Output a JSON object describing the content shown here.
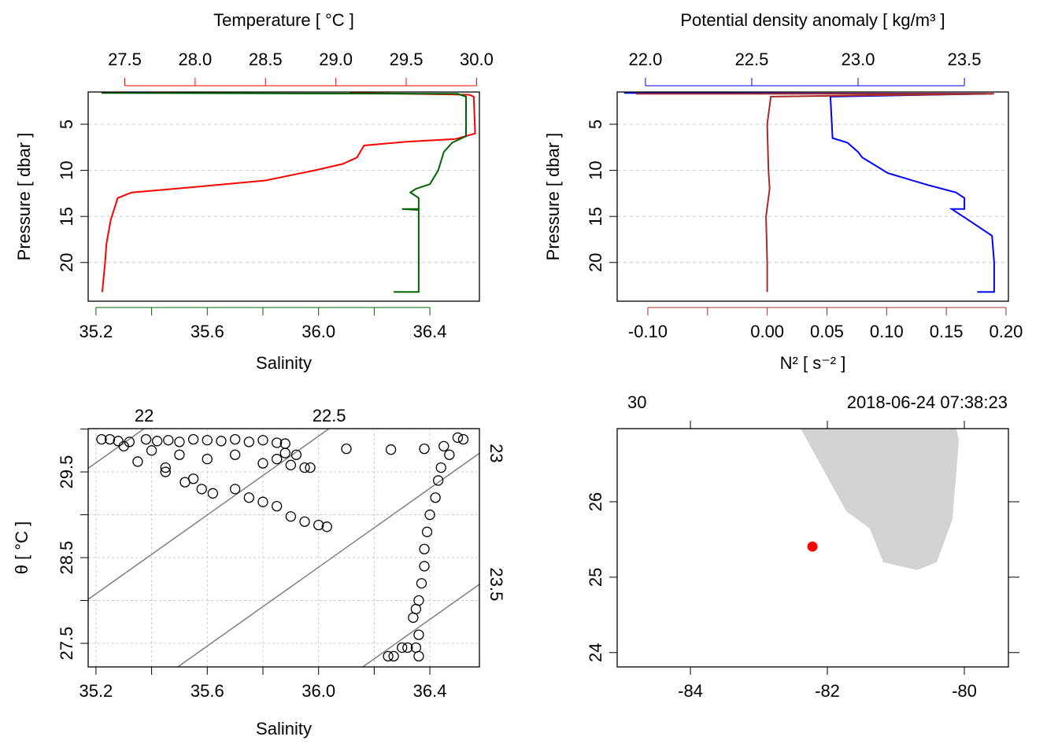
{
  "chart_data": [
    {
      "type": "profile",
      "ylabel": "Pressure [ dbar ]",
      "ylim": [
        24.2,
        1.5
      ],
      "yticks": [
        5,
        10,
        15,
        20
      ],
      "grid": true,
      "top_axis": {
        "label": "Temperature [ °C ]",
        "color": "#ff0000",
        "xlim": [
          27.24,
          30.02
        ],
        "xticks": [
          27.5,
          {
            "value": 28,
            "label": "28.0"
          },
          28.5,
          {
            "value": 29,
            "label": "29.0"
          },
          29.5,
          {
            "value": 30,
            "label": "30.0"
          }
        ]
      },
      "bottom_axis": {
        "label": "Salinity",
        "color": "#006400",
        "xlim": [
          35.172,
          36.578
        ],
        "xticks": [
          35.2,
          35.6,
          {
            "value": 36,
            "label": "36.0"
          },
          36.4
        ],
        "minor_ticks": [
          35.4,
          35.8,
          36.2
        ]
      },
      "series": [
        {
          "axis": "top_axis",
          "color": "#ff0000",
          "pressure": [
            1.6,
            1.8,
            2,
            6,
            6.6,
            6.9,
            7.3,
            8.6,
            9.3,
            10,
            11.1,
            11.8,
            12.4,
            13,
            15.4,
            18,
            20,
            23.2
          ],
          "values": [
            29.1,
            29.95,
            29.98,
            29.99,
            29.85,
            29.5,
            29.2,
            29.15,
            29.05,
            28.85,
            28.5,
            28.0,
            27.55,
            27.45,
            27.4,
            27.37,
            27.36,
            27.34
          ]
        },
        {
          "axis": "bottom_axis",
          "color": "#006400",
          "pressure": [
            1.6,
            1.7,
            2,
            6.3,
            7,
            8,
            10,
            11.5,
            12,
            12.4,
            13,
            14.2,
            14.2,
            14.3,
            17,
            23.2,
            23.2
          ],
          "values": [
            35.22,
            36.5,
            36.53,
            36.53,
            36.48,
            36.45,
            36.43,
            36.4,
            36.35,
            36.33,
            36.36,
            36.36,
            36.3,
            36.36,
            36.36,
            36.36,
            36.27
          ]
        }
      ]
    },
    {
      "type": "profile",
      "ylabel": "Pressure [ dbar ]",
      "ylim": [
        24.2,
        1.5
      ],
      "yticks": [
        5,
        10,
        15,
        20
      ],
      "grid": true,
      "top_axis": {
        "label": "Potential density anomaly [ kg/m³ ]",
        "color": "#0000ff",
        "xlim": [
          21.867,
          23.707
        ],
        "xticks": [
          {
            "value": 22,
            "label": "22.0"
          },
          22.5,
          {
            "value": 23,
            "label": "23.0"
          },
          23.5
        ]
      },
      "bottom_axis": {
        "label": "N² [ s⁻² ]",
        "color": "#a52a2a",
        "xlim": [
          -0.1257,
          0.202
        ],
        "xticks": [
          {
            "value": -0.1,
            "label": "-0.10"
          },
          {
            "value": 0,
            "label": "0.00"
          },
          0.05,
          {
            "value": 0.1,
            "label": "0.10"
          },
          0.15,
          {
            "value": 0.2,
            "label": "0.20"
          }
        ],
        "minor_ticks": [
          -0.05
        ]
      },
      "series": [
        {
          "axis": "top_axis",
          "color": "#0000ff",
          "pressure": [
            1.6,
            1.7,
            2,
            6.5,
            7,
            8,
            8.6,
            10.3,
            11.6,
            12.4,
            13,
            14.2,
            14.2,
            15.4,
            17.1,
            20,
            23.2,
            23.2
          ],
          "values": [
            21.9,
            23.6,
            22.87,
            22.88,
            22.95,
            23.0,
            23.02,
            23.14,
            23.33,
            23.46,
            23.5,
            23.5,
            23.44,
            23.52,
            23.63,
            23.64,
            23.64,
            23.56
          ]
        },
        {
          "axis": "bottom_axis",
          "color": "#a52a2a",
          "pressure": [
            1.7,
            1.7,
            2,
            5,
            10,
            12,
            15,
            20,
            23.2
          ],
          "values": [
            -0.11,
            0.19,
            0.003,
            0.0,
            0.001,
            0.002,
            -0.001,
            0.0,
            0.0
          ]
        }
      ]
    },
    {
      "type": "ts",
      "xlabel": "Salinity",
      "ylabel": "θ [ °C ]",
      "xlim": [
        35.172,
        36.578
      ],
      "ylim": [
        27.225,
        30.005
      ],
      "xticks": [
        35.2,
        35.6,
        {
          "value": 36,
          "label": "36.0"
        },
        36.4
      ],
      "x_minor_ticks": [
        35.4,
        35.8,
        36.2
      ],
      "yticks": [
        27.5,
        28.5,
        29.5
      ],
      "y_minor_ticks": [
        28,
        29,
        30
      ],
      "grid": true,
      "isopycnals": [
        22,
        22.5,
        23,
        23.5
      ],
      "x": [
        35.22,
        35.25,
        35.28,
        35.32,
        35.38,
        35.42,
        35.46,
        35.5,
        35.55,
        35.6,
        35.65,
        35.7,
        35.75,
        35.8,
        35.85,
        35.88,
        35.3,
        35.4,
        35.5,
        35.6,
        35.7,
        35.8,
        35.85,
        35.9,
        35.95,
        35.97,
        35.88,
        35.92,
        35.35,
        35.45,
        35.55,
        35.62,
        35.7,
        35.75,
        35.8,
        35.85,
        35.9,
        35.95,
        36.0,
        36.03,
        35.45,
        35.52,
        35.58,
        36.1,
        36.26,
        36.38,
        36.45,
        36.5,
        36.52,
        36.47,
        36.44,
        36.43,
        36.42,
        36.4,
        36.39,
        36.38,
        36.38,
        36.37,
        36.36,
        36.35,
        36.34,
        36.36,
        36.35,
        36.36,
        36.3,
        36.27,
        36.25,
        36.32
      ],
      "y": [
        29.88,
        29.88,
        29.86,
        29.85,
        29.88,
        29.86,
        29.87,
        29.85,
        29.88,
        29.87,
        29.86,
        29.88,
        29.85,
        29.87,
        29.84,
        29.83,
        29.8,
        29.75,
        29.7,
        29.65,
        29.7,
        29.6,
        29.65,
        29.58,
        29.55,
        29.55,
        29.72,
        29.7,
        29.62,
        29.5,
        29.42,
        29.25,
        29.3,
        29.2,
        29.15,
        29.1,
        28.98,
        28.92,
        28.88,
        28.86,
        29.55,
        29.38,
        29.3,
        29.77,
        29.76,
        29.77,
        29.8,
        29.9,
        29.88,
        29.7,
        29.55,
        29.4,
        29.2,
        29.0,
        28.8,
        28.6,
        28.4,
        28.2,
        28.0,
        27.9,
        27.8,
        27.6,
        27.45,
        27.35,
        27.45,
        27.35,
        27.35,
        27.45
      ]
    },
    {
      "type": "map",
      "xlim": [
        -85.07,
        -79.356
      ],
      "ylim": [
        23.81,
        26.97
      ],
      "xticks": [
        -84,
        -82,
        -80
      ],
      "yticks": [
        24,
        25,
        26
      ],
      "station": "30",
      "time": "2018-06-24 07:38:23",
      "land_color": "#d3d3d3",
      "land": {
        "lon": [
          -82.39,
          -81.724,
          -81.379,
          -81.184,
          -80.69,
          -80.402,
          -80.172,
          -80.08,
          -80.115
        ],
        "lat": [
          26.97,
          25.875,
          25.646,
          25.198,
          25.094,
          25.198,
          25.771,
          26.813,
          26.969
        ]
      },
      "point_color": "#ff0000",
      "longitude": -82.218,
      "latitude": 25.406
    }
  ]
}
